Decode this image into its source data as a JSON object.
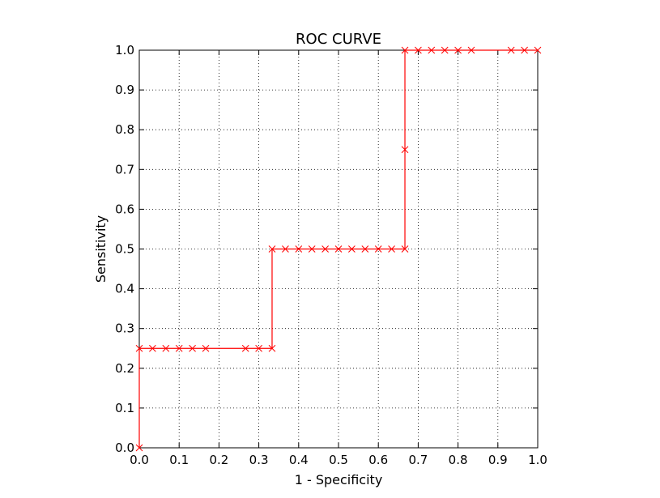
{
  "chart_data": {
    "type": "line",
    "title": "ROC CURVE",
    "xlabel": "1 - Specificity",
    "ylabel": "Sensitivity",
    "xlim": [
      0.0,
      1.0
    ],
    "ylim": [
      0.0,
      1.0
    ],
    "xticks": [
      "0.0",
      "0.1",
      "0.2",
      "0.3",
      "0.4",
      "0.5",
      "0.6",
      "0.7",
      "0.8",
      "0.9",
      "1.0"
    ],
    "yticks": [
      "0.0",
      "0.1",
      "0.2",
      "0.3",
      "0.4",
      "0.5",
      "0.6",
      "0.7",
      "0.8",
      "0.9",
      "1.0"
    ],
    "grid": true,
    "grid_style": "dotted",
    "line_color": "#ff0000",
    "marker": "x",
    "series": [
      {
        "x": [
          0.0,
          0.0,
          0.0333,
          0.0667,
          0.1,
          0.1333,
          0.1667,
          0.2667,
          0.3,
          0.3333,
          0.3333,
          0.3667,
          0.4,
          0.4333,
          0.4667,
          0.5,
          0.5333,
          0.5667,
          0.6,
          0.6333,
          0.6667,
          0.6667,
          0.6667,
          0.7,
          0.7333,
          0.7667,
          0.8,
          0.8333,
          0.9333,
          0.9667,
          1.0
        ],
        "y": [
          0.0,
          0.25,
          0.25,
          0.25,
          0.25,
          0.25,
          0.25,
          0.25,
          0.25,
          0.25,
          0.5,
          0.5,
          0.5,
          0.5,
          0.5,
          0.5,
          0.5,
          0.5,
          0.5,
          0.5,
          0.5,
          0.75,
          1.0,
          1.0,
          1.0,
          1.0,
          1.0,
          1.0,
          1.0,
          1.0,
          1.0
        ]
      }
    ]
  }
}
